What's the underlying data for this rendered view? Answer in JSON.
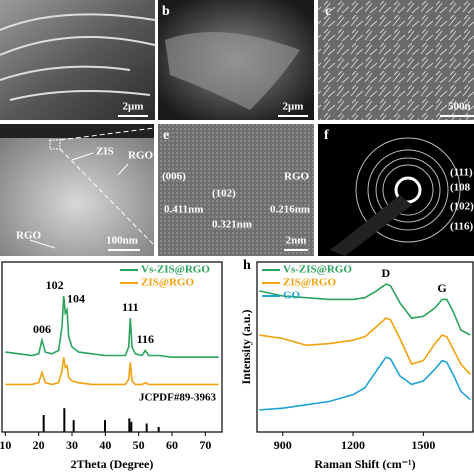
{
  "panels": {
    "a": {
      "scale_bar": "2μm"
    },
    "b": {
      "label": "b",
      "scale_bar": "2μm"
    },
    "c": {
      "label": "c",
      "scale_bar": "500n"
    },
    "d": {
      "annotations": [
        "ZIS",
        "RGO",
        "RGO"
      ],
      "scale_bar": "100nm"
    },
    "e": {
      "label": "e",
      "annotations": [
        "(006)",
        "0.411nm",
        "(102)",
        "0.321nm",
        "RGO",
        "0.216nm"
      ],
      "scale_bar": "2nm"
    },
    "f": {
      "label": "f",
      "rings": [
        "(111)",
        "(108",
        "(102)",
        "(116)"
      ]
    }
  },
  "chart_data": [
    {
      "type": "line",
      "xlabel": "2Theta (Degree)",
      "xlim": [
        9,
        75
      ],
      "xticks": [
        10,
        20,
        30,
        40,
        50,
        60,
        70
      ],
      "ylim": [
        0,
        100
      ],
      "x": [
        10,
        14,
        18,
        20,
        21,
        22,
        24,
        26,
        27,
        27.5,
        28,
        28.5,
        29,
        30,
        32,
        36,
        40,
        44,
        46,
        47,
        47.5,
        48,
        49,
        51,
        52,
        53,
        56,
        60,
        64,
        68,
        72,
        74
      ],
      "series": [
        {
          "name": "Vs-ZIS@RGO",
          "color": "#2aa35a",
          "values": [
            47,
            46,
            45,
            46,
            54,
            47,
            46,
            48,
            62,
            80,
            70,
            72,
            56,
            50,
            47,
            46,
            45,
            45,
            45,
            50,
            67,
            50,
            46,
            45,
            48,
            45,
            45,
            44,
            44,
            44,
            44,
            44
          ]
        },
        {
          "name": "ZIS@RGO",
          "color": "#f2a20f",
          "values": [
            28,
            28,
            28,
            29,
            35,
            29,
            28,
            29,
            36,
            44,
            38,
            39,
            32,
            30,
            29,
            28,
            28,
            28,
            28,
            31,
            41,
            30,
            28,
            28,
            29,
            28,
            28,
            28,
            28,
            28,
            28,
            28
          ]
        }
      ],
      "reference": {
        "name": "JCPDF#89-3963",
        "color": "#000000",
        "x": [
          21.5,
          27.7,
          30.5,
          39.9,
          47.2,
          47.8,
          52.4,
          56
        ],
        "values": [
          10,
          14,
          7,
          7,
          8,
          6,
          5,
          3
        ]
      },
      "peak_labels": [
        {
          "text": "006",
          "x": 21
        },
        {
          "text": "102",
          "x": 27.5
        },
        {
          "text": "104",
          "x": 28.5
        },
        {
          "text": "111",
          "x": 47.5
        },
        {
          "text": "116",
          "x": 52
        }
      ]
    },
    {
      "type": "line",
      "panel_label": "h",
      "xlabel": "Raman Shift (cm⁻¹)",
      "ylabel": "Intensity (a.u.)",
      "xlim": [
        790,
        1712
      ],
      "xticks": [
        900,
        1200,
        1500
      ],
      "ylim": [
        0,
        100
      ],
      "x": [
        800,
        900,
        1000,
        1100,
        1200,
        1250,
        1300,
        1340,
        1360,
        1400,
        1450,
        1500,
        1550,
        1580,
        1600,
        1630,
        1660,
        1700
      ],
      "series": [
        {
          "name": "Vs-ZIS@RGO",
          "color": "#2aa35a",
          "values": [
            83,
            80,
            79,
            78,
            78,
            79,
            83,
            87,
            86,
            76,
            67,
            68,
            73,
            78,
            78,
            70,
            60,
            57
          ]
        },
        {
          "name": "ZIS@RGO",
          "color": "#f2a20f",
          "values": [
            57,
            55,
            51,
            52,
            54,
            56,
            62,
            67,
            66,
            55,
            40,
            42,
            52,
            57,
            56,
            48,
            40,
            34
          ]
        },
        {
          "name": "GO",
          "color": "#1ea3d6",
          "values": [
            13,
            14,
            16,
            18,
            22,
            26,
            36,
            44,
            43,
            33,
            28,
            30,
            37,
            42,
            41,
            33,
            24,
            19
          ]
        }
      ],
      "peak_labels": [
        {
          "text": "D",
          "x": 1340
        },
        {
          "text": "G",
          "x": 1580
        }
      ]
    }
  ]
}
